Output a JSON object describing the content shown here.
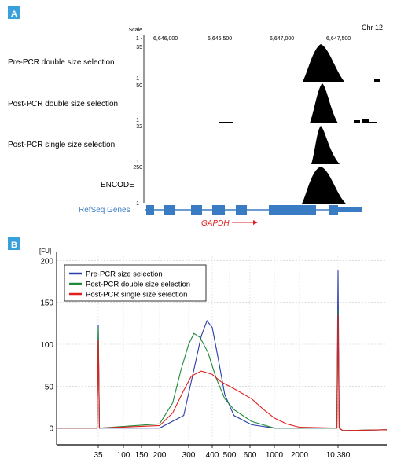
{
  "panels": {
    "a_label": "A",
    "b_label": "B",
    "panel_color": "#3aa0dc"
  },
  "panel_a": {
    "scale_label": "Scale",
    "chromosome": "Chr 12",
    "coordinates": [
      "6,646,000",
      "6,646,500",
      "6,647,000",
      "6,647,500"
    ],
    "tracks": [
      {
        "name": "Pre-PCR double size selection",
        "max": "35",
        "min": "1"
      },
      {
        "name": "Post-PCR double size selection",
        "max": "50",
        "min": "1"
      },
      {
        "name": "Post-PCR single size selection",
        "max": "32",
        "min": "1"
      },
      {
        "name": "ENCODE",
        "max": "250",
        "min": "1"
      }
    ],
    "refseq_label": "RefSeq Genes",
    "refseq_color": "#3a7cc4",
    "gene_label": "GAPDH",
    "gene_color": "#e02020"
  },
  "chart_data": {
    "type": "line",
    "y_unit": "[FU]",
    "ylim": [
      -20,
      205
    ],
    "y_ticks": [
      0,
      50,
      100,
      150,
      200
    ],
    "x_tick_labels": [
      "35",
      "100",
      "150",
      "200",
      "300",
      "400",
      "500",
      "600",
      "1000",
      "2000",
      "10,380"
    ],
    "legend_position": "top-left",
    "grid": true,
    "series": [
      {
        "name": "Pre-PCR size selection",
        "color": "#2b3ea8",
        "points": [
          [
            35,
            123
          ],
          [
            200,
            0
          ],
          [
            280,
            15
          ],
          [
            320,
            70
          ],
          [
            350,
            110
          ],
          [
            375,
            128
          ],
          [
            400,
            120
          ],
          [
            430,
            85
          ],
          [
            470,
            40
          ],
          [
            520,
            15
          ],
          [
            620,
            4
          ],
          [
            1000,
            0
          ],
          [
            10380,
            188
          ]
        ]
      },
      {
        "name": "Post-PCR double size selection",
        "color": "#1e8a3a",
        "points": [
          [
            35,
            120
          ],
          [
            200,
            5
          ],
          [
            240,
            30
          ],
          [
            270,
            70
          ],
          [
            300,
            100
          ],
          [
            320,
            113
          ],
          [
            345,
            108
          ],
          [
            380,
            90
          ],
          [
            420,
            60
          ],
          [
            470,
            35
          ],
          [
            520,
            22
          ],
          [
            620,
            8
          ],
          [
            1000,
            0
          ],
          [
            10380,
            140
          ]
        ]
      },
      {
        "name": "Post-PCR single size selection",
        "color": "#e02020",
        "points": [
          [
            35,
            105
          ],
          [
            200,
            3
          ],
          [
            240,
            18
          ],
          [
            280,
            45
          ],
          [
            310,
            62
          ],
          [
            350,
            68
          ],
          [
            400,
            64
          ],
          [
            450,
            55
          ],
          [
            520,
            47
          ],
          [
            620,
            35
          ],
          [
            800,
            22
          ],
          [
            1000,
            12
          ],
          [
            1400,
            5
          ],
          [
            2000,
            1
          ],
          [
            10380,
            135
          ]
        ]
      }
    ]
  }
}
